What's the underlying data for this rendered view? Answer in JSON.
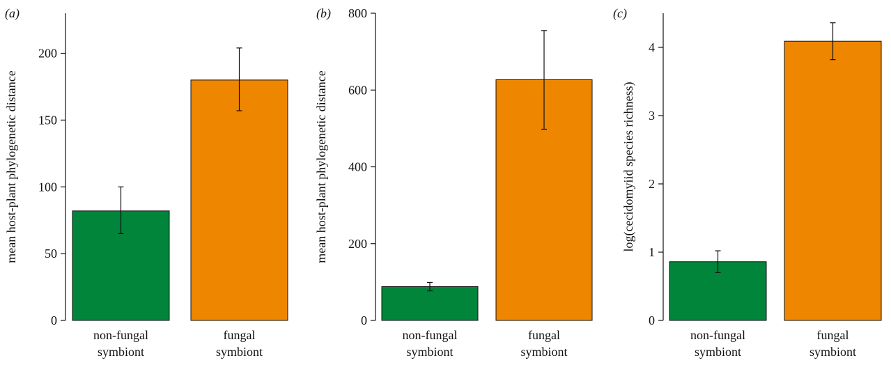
{
  "colors": {
    "non_fungal": "#00853a",
    "fungal": "#ef8600"
  },
  "chart_data": [
    {
      "type": "bar",
      "panel_label": "(a)",
      "categories": [
        [
          "non-fungal",
          "symbiont"
        ],
        [
          "fungal",
          "symbiont"
        ]
      ],
      "values": [
        82,
        180
      ],
      "errors": [
        {
          "low": 65,
          "high": 100
        },
        {
          "low": 157,
          "high": 204
        }
      ],
      "ylabel": "mean host-plant phylogenetic distance",
      "ylim": [
        0,
        230
      ],
      "yticks": [
        0,
        50,
        100,
        150,
        200
      ]
    },
    {
      "type": "bar",
      "panel_label": "(b)",
      "categories": [
        [
          "non-fungal",
          "symbiont"
        ],
        [
          "fungal",
          "symbiont"
        ]
      ],
      "values": [
        88,
        627
      ],
      "errors": [
        {
          "low": 77,
          "high": 99
        },
        {
          "low": 498,
          "high": 755
        }
      ],
      "ylabel": "mean host-plant phylogenetic distance",
      "ylim": [
        0,
        800
      ],
      "yticks": [
        0,
        200,
        400,
        600,
        800
      ]
    },
    {
      "type": "bar",
      "panel_label": "(c)",
      "categories": [
        [
          "non-fungal",
          "symbiont"
        ],
        [
          "fungal",
          "symbiont"
        ]
      ],
      "values": [
        0.86,
        4.09
      ],
      "errors": [
        {
          "low": 0.7,
          "high": 1.02
        },
        {
          "low": 3.82,
          "high": 4.36
        }
      ],
      "ylabel": "log(cecidomyiid species richness)",
      "ylim": [
        0,
        4.5
      ],
      "yticks": [
        0,
        1,
        2,
        3,
        4
      ]
    }
  ]
}
